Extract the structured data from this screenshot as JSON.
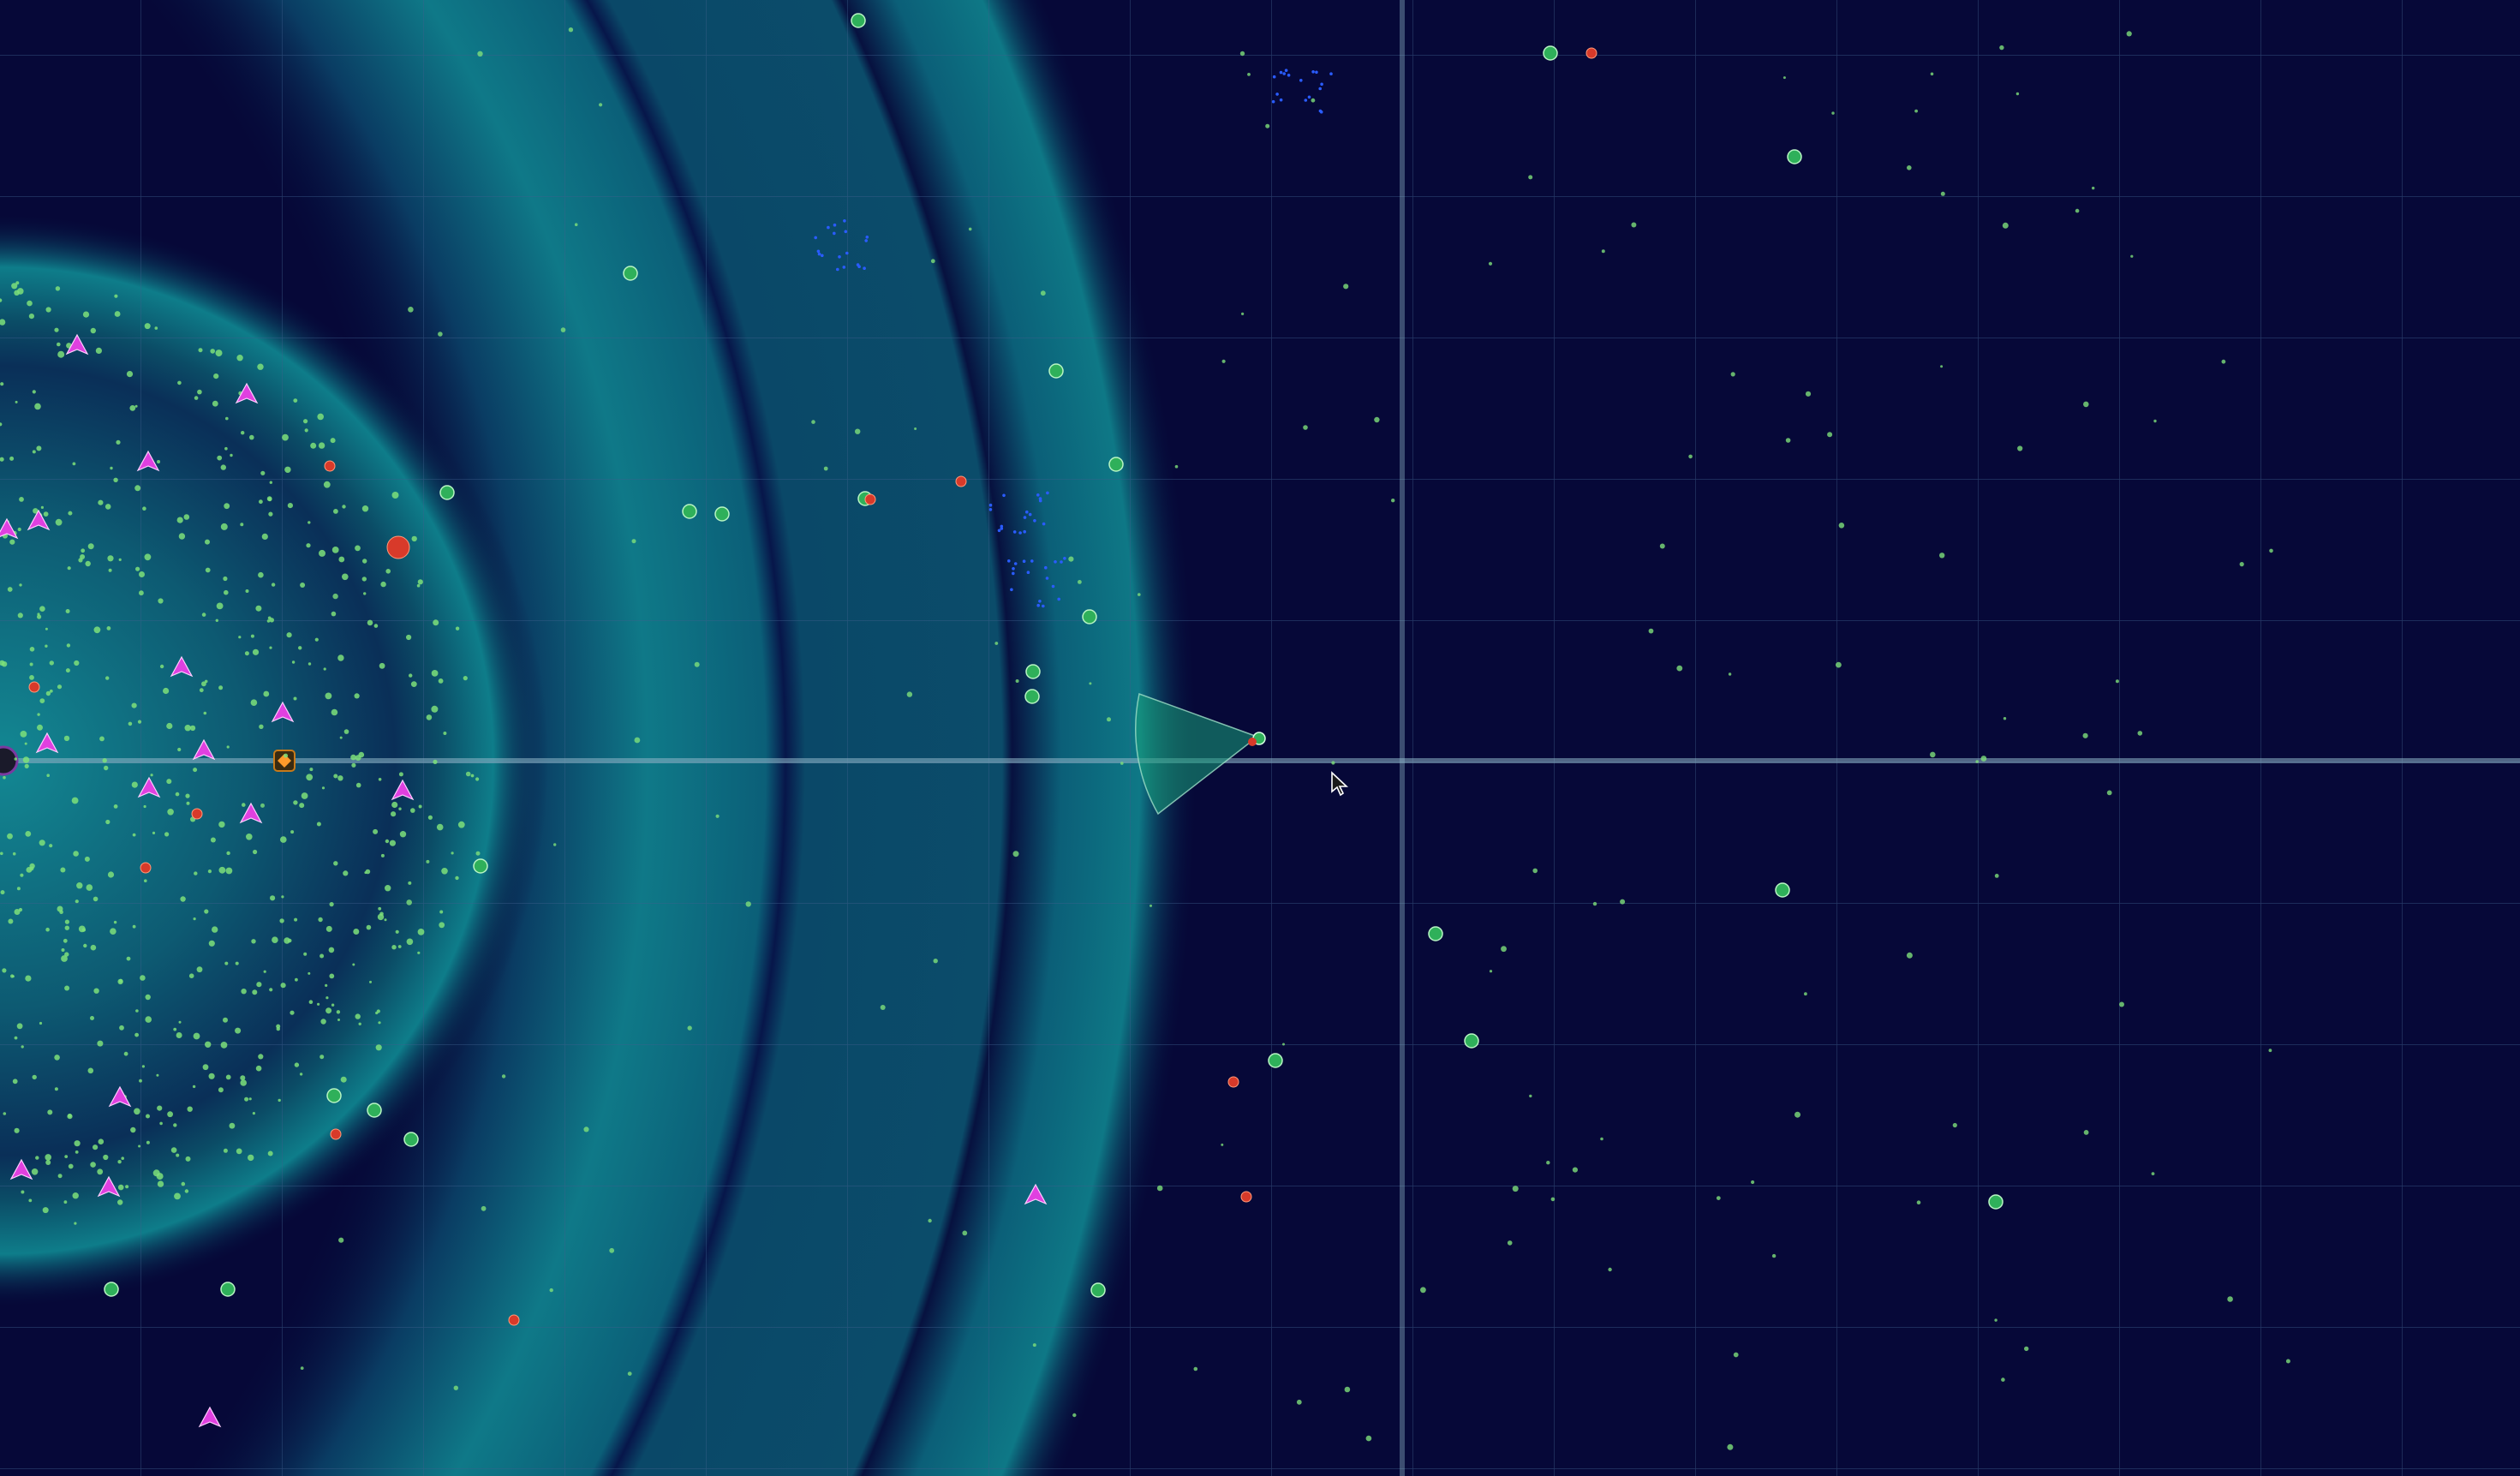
{
  "game": {
    "colors": {
      "background": "#060838",
      "teal_band": "#0b6f80",
      "teal_bright": "#10808f",
      "inner_glow": "#0f7d89",
      "grid_line": "#3d5d8a",
      "axis_line": "#8fb7c8",
      "food_green": "#7ee07a",
      "player_green": "#2fb05a",
      "enemy_magenta": "#e040e0",
      "hazard_red": "#d83a2a",
      "cluster_blue": "#2a5cff"
    },
    "entities": {
      "player": {
        "kind": "player-cell",
        "heading": "right",
        "view_cone": "teal-sector"
      },
      "cursor": {
        "icon": "arrow-pointer-icon"
      },
      "special_item": {
        "icon": "orange-diamond-icon"
      },
      "enemy": {
        "kind": "magenta-creature"
      },
      "hazard": {
        "kind": "red-spore"
      },
      "food": {
        "kind": "green-pellet"
      }
    },
    "zones": [
      {
        "name": "inner-core",
        "shape": "circle"
      },
      {
        "name": "ring-band-1",
        "shape": "arc"
      },
      {
        "name": "ring-band-2",
        "shape": "arc"
      },
      {
        "name": "ring-band-3",
        "shape": "arc"
      }
    ]
  }
}
